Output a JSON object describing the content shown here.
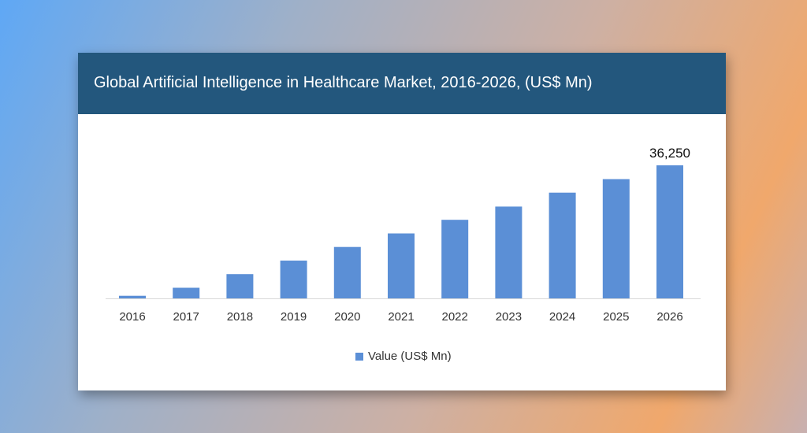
{
  "chart_data": {
    "type": "bar",
    "title": "Global Artificial Intelligence in Healthcare Market, 2016-2026, (US$ Mn)",
    "categories": [
      "2016",
      "2017",
      "2018",
      "2019",
      "2020",
      "2021",
      "2022",
      "2023",
      "2024",
      "2025",
      "2026"
    ],
    "series": [
      {
        "name": "Value (US$ Mn)",
        "color": "#5b8fd6",
        "values": [
          700,
          2900,
          6600,
          10300,
          14000,
          17700,
          21400,
          25000,
          28800,
          32500,
          36250
        ]
      }
    ],
    "data_labels": [
      {
        "category": "2026",
        "text": "36,250"
      }
    ],
    "xlabel": "",
    "ylabel": "",
    "ylim": [
      0,
      36250
    ],
    "y_axis_visible": false,
    "grid": false,
    "legend_position": "bottom",
    "header_color": "#23577d"
  }
}
